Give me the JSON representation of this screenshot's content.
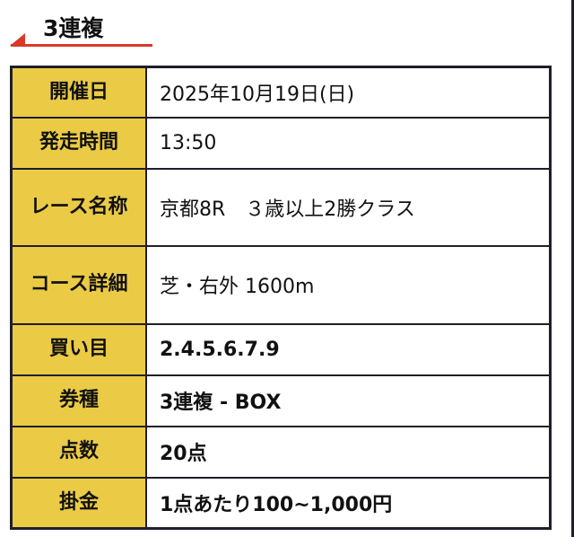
{
  "heading": "3連複",
  "accent_color": "#d9392b",
  "label_bg_color": "#ebcb45",
  "rows": [
    {
      "label": "開催日",
      "value": "2025年10月19日(日)",
      "bold": false
    },
    {
      "label": "発走時間",
      "value": "13:50",
      "bold": false
    },
    {
      "label": "レース名称",
      "value": "京都8R　３歳以上2勝クラス",
      "bold": false
    },
    {
      "label": "コース詳細",
      "value": "芝・右外 1600m",
      "bold": false
    },
    {
      "label": "買い目",
      "value": "2.4.5.6.7.9",
      "bold": true
    },
    {
      "label": "券種",
      "value": "3連複 - BOX",
      "bold": true
    },
    {
      "label": "点数",
      "value": "20点",
      "bold": true
    },
    {
      "label": "掛金",
      "value": "1点あたり100~1,000円",
      "bold": true
    }
  ]
}
